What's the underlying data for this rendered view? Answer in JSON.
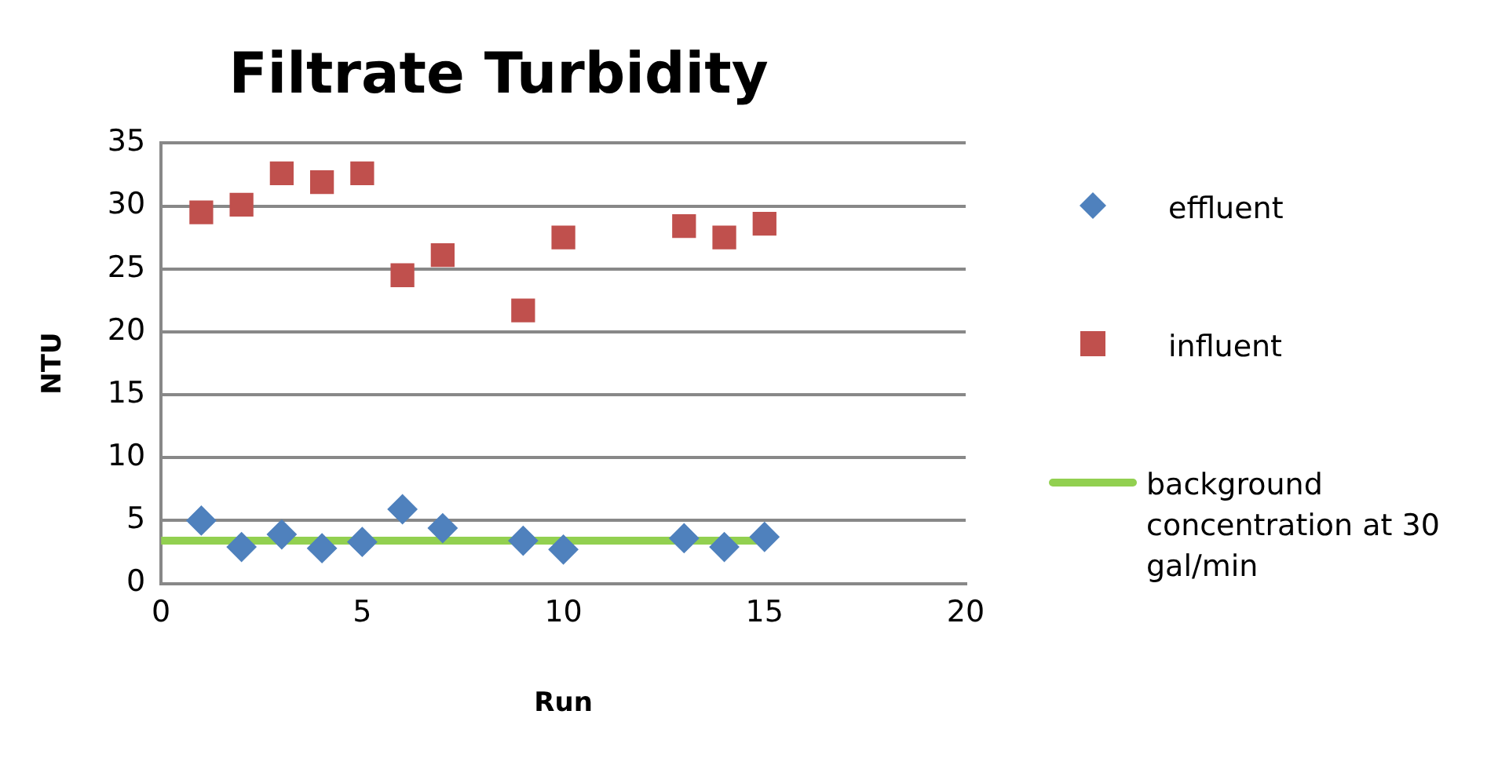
{
  "chart_data": {
    "type": "scatter",
    "title": "Filtrate Turbidity",
    "xlabel": "Run",
    "ylabel": "NTU",
    "xlim": [
      0,
      20
    ],
    "xticks": [
      0,
      5,
      10,
      15,
      20
    ],
    "ylim": [
      0,
      35
    ],
    "yticks": [
      0,
      5,
      10,
      15,
      20,
      25,
      30,
      35
    ],
    "grid": "y",
    "legend": "right",
    "series": [
      {
        "name": "effluent",
        "color": "#4f81bd",
        "marker": "diamond",
        "x": [
          1,
          2,
          3,
          4,
          5,
          6,
          7,
          9,
          10,
          13,
          14,
          15
        ],
        "values": [
          5.0,
          2.9,
          3.9,
          2.8,
          3.3,
          5.9,
          4.4,
          3.4,
          2.7,
          3.6,
          2.9,
          3.7
        ]
      },
      {
        "name": "influent",
        "color": "#c0504d",
        "marker": "square",
        "x": [
          1,
          2,
          3,
          4,
          5,
          6,
          7,
          9,
          10,
          13,
          14,
          15
        ],
        "values": [
          29.5,
          30.1,
          32.6,
          31.9,
          32.6,
          24.5,
          26.1,
          21.7,
          27.5,
          28.4,
          27.5,
          28.6
        ]
      },
      {
        "name": "background concentration at 30 gal/min",
        "type": "line",
        "color": "#92d050",
        "marker": "none",
        "x": [
          0,
          15
        ],
        "values": [
          3.4,
          3.4
        ]
      }
    ]
  }
}
